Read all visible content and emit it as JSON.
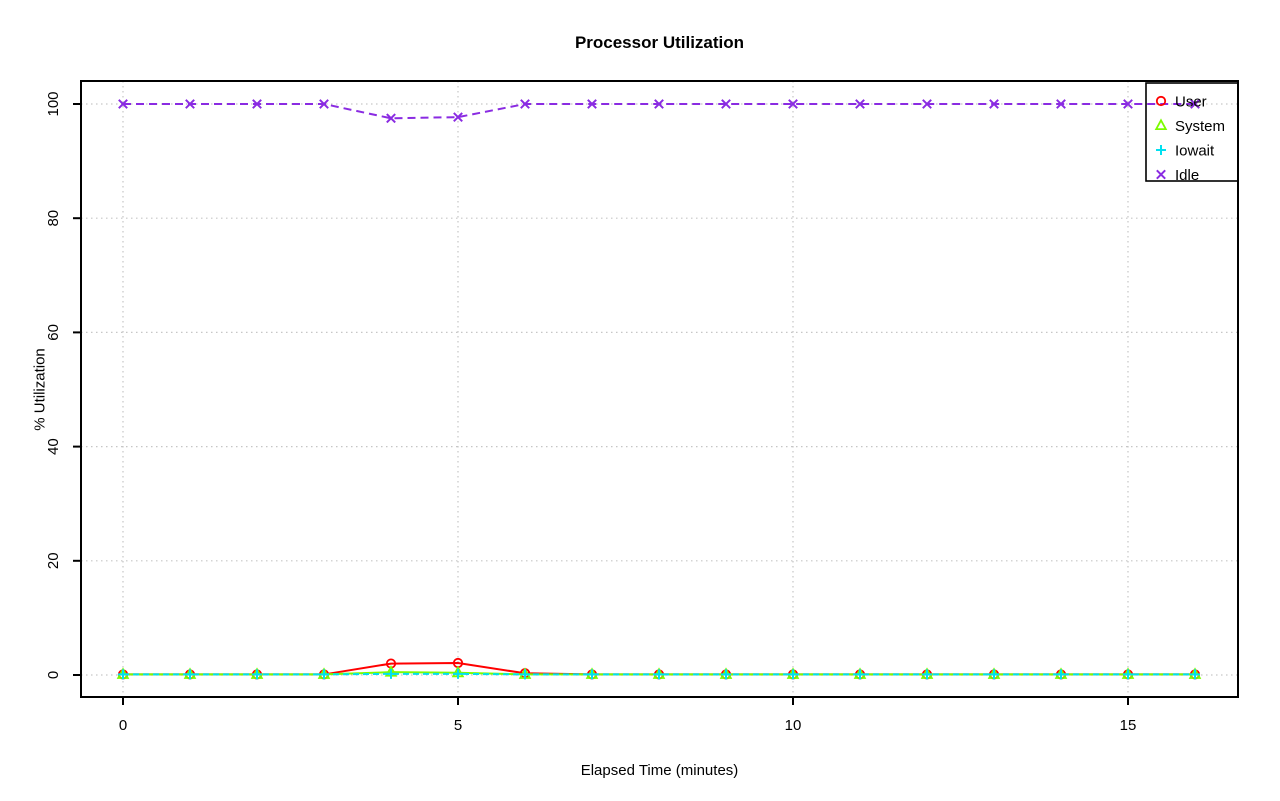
{
  "chart_data": {
    "type": "line",
    "title": "Processor Utilization",
    "xlabel": "Elapsed Time (minutes)",
    "ylabel": "% Utilization",
    "xlim": [
      0,
      16
    ],
    "ylim": [
      0,
      100
    ],
    "xticks": [
      0,
      5,
      10,
      15
    ],
    "yticks": [
      0,
      20,
      40,
      60,
      80,
      100
    ],
    "grid": true,
    "grid_color": "#c6c6c6",
    "legend_position": "topright",
    "x": [
      0,
      1,
      2,
      3,
      4,
      5,
      6,
      7,
      8,
      9,
      10,
      11,
      12,
      13,
      14,
      15,
      16
    ],
    "series": [
      {
        "name": "User",
        "color": "#ff0000",
        "marker": "circle",
        "dash": "",
        "values": [
          0.1,
          0.1,
          0.1,
          0.1,
          2,
          2.1,
          0.3,
          0.1,
          0.1,
          0.1,
          0.1,
          0.1,
          0.1,
          0.1,
          0.1,
          0.1,
          0.1
        ]
      },
      {
        "name": "System",
        "color": "#7cfc00",
        "marker": "triangle",
        "dash": "",
        "values": [
          0.1,
          0.1,
          0.1,
          0.1,
          0.5,
          0.4,
          0.1,
          0.1,
          0.1,
          0.1,
          0.1,
          0.1,
          0.1,
          0.1,
          0.1,
          0.1,
          0.1
        ]
      },
      {
        "name": "Iowait",
        "color": "#00e0f0",
        "marker": "plus",
        "dash": "6,4",
        "values": [
          0.1,
          0.1,
          0.1,
          0.1,
          0.2,
          0.2,
          0.1,
          0.1,
          0.1,
          0.1,
          0.1,
          0.1,
          0.1,
          0.1,
          0.1,
          0.1,
          0.1
        ]
      },
      {
        "name": "Idle",
        "color": "#8a2be2",
        "marker": "x",
        "dash": "8,5",
        "values": [
          100,
          100,
          100,
          100,
          97.5,
          97.7,
          100,
          100,
          100,
          100,
          100,
          100,
          100,
          100,
          100,
          100,
          100
        ]
      }
    ]
  }
}
